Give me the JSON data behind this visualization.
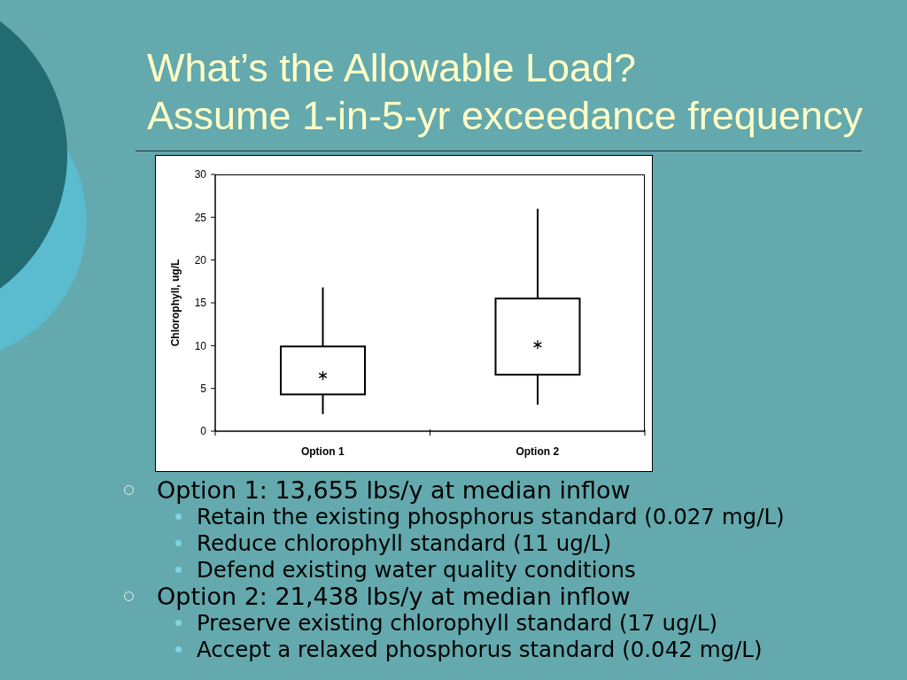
{
  "chart_data": {
    "type": "box",
    "title": "What’s the Allowable Load?",
    "subtitle": "Assume 1-in-5-yr exceedance frequency",
    "ylabel": "Chlorophyll, ug/L",
    "categories": [
      "Option 1",
      "Option 2"
    ],
    "boxes": [
      {
        "low": 2,
        "q1": 4.3,
        "median": 6.5,
        "q3": 9.9,
        "high": 16.8
      },
      {
        "low": 3.1,
        "q1": 6.6,
        "median": 10.1,
        "q3": 15.5,
        "high": 26
      }
    ],
    "color": "#000000",
    "marker": "star",
    "ylim": [
      0,
      30
    ],
    "yticks": [
      0,
      5,
      10,
      15,
      20,
      25,
      30
    ],
    "annotations": [
      "Option 1: 13,655 lbs/y at median inflow",
      "Retain the existing phosphorus standard (0.027 mg/L)",
      "Reduce chlorophyll standard (11 ug/L)",
      "Defend existing water quality conditions",
      "Option 2: 21,438 lbs/y at median inflow",
      "Preserve existing chlorophyll standard (17 ug/L)",
      "Accept a relaxed phosphorus standard (0.042 mg/L)"
    ]
  }
}
